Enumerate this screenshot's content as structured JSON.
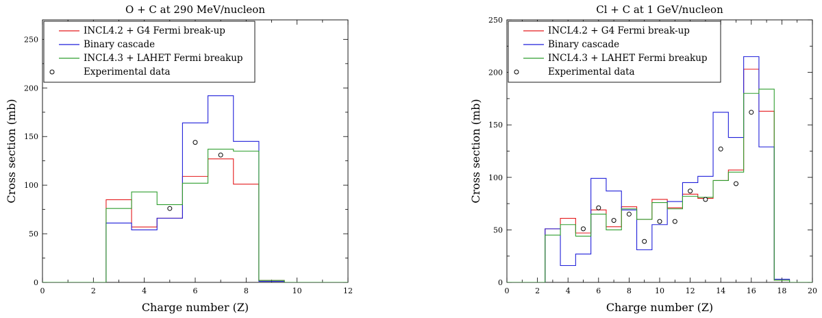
{
  "chart_data": [
    {
      "type": "line",
      "step": true,
      "title": "O + C at 290 MeV/nucleon",
      "xlabel": "Charge number (Z)",
      "ylabel": "Cross section (mb)",
      "xlim": [
        0,
        12
      ],
      "ylim": [
        0,
        270
      ],
      "xticks": [
        0,
        2,
        4,
        6,
        8,
        10,
        12
      ],
      "yticks": [
        0,
        50,
        100,
        150,
        200,
        250
      ],
      "legend_position": "top-left",
      "series": [
        {
          "name": "INCL4.2 + G4 Fermi break-up",
          "color": "#e41a1c",
          "bin_edges": [
            0,
            2.5,
            3.5,
            4.5,
            5.5,
            6.5,
            7.5,
            8.5,
            9.5,
            12
          ],
          "values": [
            0,
            85,
            57,
            66,
            109,
            127,
            101,
            2,
            0
          ]
        },
        {
          "name": "Binary cascade",
          "color": "#1f1fd9",
          "bin_edges": [
            0,
            2.5,
            3.5,
            4.5,
            5.5,
            6.5,
            7.5,
            8.5,
            9.5,
            12
          ],
          "values": [
            0,
            61,
            54,
            66,
            164,
            192,
            145,
            1,
            0
          ]
        },
        {
          "name": "INCL4.3 + LAHET Fermi breakup",
          "color": "#2e9e2e",
          "bin_edges": [
            0,
            2.5,
            3.5,
            4.5,
            5.5,
            6.5,
            7.5,
            8.5,
            9.5,
            12
          ],
          "values": [
            0,
            76,
            93,
            80,
            102,
            137,
            135,
            2,
            0
          ]
        },
        {
          "name": "Experimental data",
          "marker": "circle",
          "x": [
            5,
            6,
            7
          ],
          "y": [
            76,
            144,
            131
          ]
        }
      ]
    },
    {
      "type": "line",
      "step": true,
      "title": "Cl + C at 1 GeV/nucleon",
      "xlabel": "Charge number (Z)",
      "ylabel": "Cross section (mb)",
      "xlim": [
        0,
        20
      ],
      "ylim": [
        0,
        250
      ],
      "xticks": [
        0,
        2,
        4,
        6,
        8,
        10,
        12,
        14,
        16,
        18,
        20
      ],
      "yticks": [
        0,
        50,
        100,
        150,
        200,
        250
      ],
      "legend_position": "top-left",
      "series": [
        {
          "name": "INCL4.2 + G4 Fermi break-up",
          "color": "#e41a1c",
          "bin_edges": [
            0,
            2.5,
            3.5,
            4.5,
            5.5,
            6.5,
            7.5,
            8.5,
            9.5,
            10.5,
            11.5,
            12.5,
            13.5,
            14.5,
            15.5,
            16.5,
            17.5,
            18.5,
            20
          ],
          "values": [
            0,
            51,
            61,
            47,
            69,
            53,
            72,
            60,
            79,
            71,
            84,
            80,
            97,
            107,
            203,
            163,
            2,
            0
          ]
        },
        {
          "name": "Binary cascade",
          "color": "#1f1fd9",
          "bin_edges": [
            0,
            2.5,
            3.5,
            4.5,
            5.5,
            6.5,
            7.5,
            8.5,
            9.5,
            10.5,
            11.5,
            12.5,
            13.5,
            14.5,
            15.5,
            16.5,
            17.5,
            18.5,
            20
          ],
          "values": [
            0,
            51,
            16,
            27,
            99,
            87,
            69,
            31,
            55,
            77,
            95,
            101,
            162,
            138,
            215,
            129,
            3,
            0
          ]
        },
        {
          "name": "INCL4.3 + LAHET Fermi breakup",
          "color": "#2e9e2e",
          "bin_edges": [
            0,
            2.5,
            3.5,
            4.5,
            5.5,
            6.5,
            7.5,
            8.5,
            9.5,
            10.5,
            11.5,
            12.5,
            13.5,
            14.5,
            15.5,
            16.5,
            17.5,
            18.5,
            20
          ],
          "values": [
            0,
            45,
            55,
            44,
            65,
            50,
            70,
            60,
            76,
            70,
            82,
            81,
            97,
            105,
            180,
            184,
            2,
            0
          ]
        },
        {
          "name": "Experimental data",
          "marker": "circle",
          "x": [
            5,
            6,
            7,
            8,
            9,
            10,
            11,
            12,
            13,
            14,
            15,
            16
          ],
          "y": [
            51,
            71,
            59,
            65,
            39,
            58,
            58,
            87,
            79,
            127,
            94,
            162
          ]
        }
      ]
    }
  ]
}
